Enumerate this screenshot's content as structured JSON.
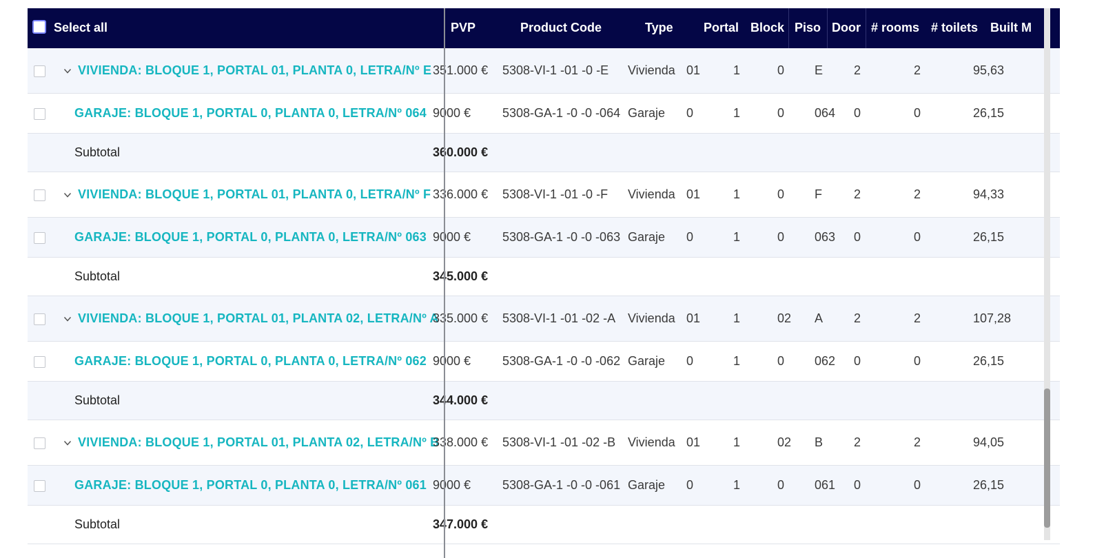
{
  "header": {
    "select_all": "Select all",
    "columns": [
      "PVP",
      "Product Code",
      "Type",
      "Portal",
      "Block",
      "Piso",
      "Door",
      "# rooms",
      "# toilets",
      "Built M"
    ]
  },
  "groups": [
    {
      "parent": {
        "name": "VIVIENDA: BLOQUE 1, PORTAL 01, PLANTA 0, LETRA/Nº E",
        "pvp": "351.000 €",
        "code": "5308-VI-1 -01 -0 -E",
        "type": "Vivienda",
        "portal": "01",
        "block": "1",
        "piso": "0",
        "door": "E",
        "rooms": "2",
        "toilets": "2",
        "built": "95,63"
      },
      "child": {
        "name": "GARAJE: BLOQUE 1, PORTAL 0, PLANTA 0, LETRA/Nº 064",
        "pvp": "9000 €",
        "code": "5308-GA-1 -0 -0 -064",
        "type": "Garaje",
        "portal": "0",
        "block": "1",
        "piso": "0",
        "door": "064",
        "rooms": "0",
        "toilets": "0",
        "built": "26,15"
      },
      "subtotal": {
        "label": "Subtotal",
        "value": "360.000 €"
      }
    },
    {
      "parent": {
        "name": "VIVIENDA: BLOQUE 1, PORTAL 01, PLANTA 0, LETRA/Nº F",
        "pvp": "336.000 €",
        "code": "5308-VI-1 -01 -0 -F",
        "type": "Vivienda",
        "portal": "01",
        "block": "1",
        "piso": "0",
        "door": "F",
        "rooms": "2",
        "toilets": "2",
        "built": "94,33"
      },
      "child": {
        "name": "GARAJE: BLOQUE 1, PORTAL 0, PLANTA 0, LETRA/Nº 063",
        "pvp": "9000 €",
        "code": "5308-GA-1 -0 -0 -063",
        "type": "Garaje",
        "portal": "0",
        "block": "1",
        "piso": "0",
        "door": "063",
        "rooms": "0",
        "toilets": "0",
        "built": "26,15"
      },
      "subtotal": {
        "label": "Subtotal",
        "value": "345.000 €"
      }
    },
    {
      "parent": {
        "name": "VIVIENDA: BLOQUE 1, PORTAL 01, PLANTA 02, LETRA/Nº A",
        "pvp": "335.000 €",
        "code": "5308-VI-1 -01 -02 -A",
        "type": "Vivienda",
        "portal": "01",
        "block": "1",
        "piso": "02",
        "door": "A",
        "rooms": "2",
        "toilets": "2",
        "built": "107,28"
      },
      "child": {
        "name": "GARAJE: BLOQUE 1, PORTAL 0, PLANTA 0, LETRA/Nº 062",
        "pvp": "9000 €",
        "code": "5308-GA-1 -0 -0 -062",
        "type": "Garaje",
        "portal": "0",
        "block": "1",
        "piso": "0",
        "door": "062",
        "rooms": "0",
        "toilets": "0",
        "built": "26,15"
      },
      "subtotal": {
        "label": "Subtotal",
        "value": "344.000 €"
      }
    },
    {
      "parent": {
        "name": "VIVIENDA: BLOQUE 1, PORTAL 01, PLANTA 02, LETRA/Nº B",
        "pvp": "338.000 €",
        "code": "5308-VI-1 -01 -02 -B",
        "type": "Vivienda",
        "portal": "01",
        "block": "1",
        "piso": "02",
        "door": "B",
        "rooms": "2",
        "toilets": "2",
        "built": "94,05"
      },
      "child": {
        "name": "GARAJE: BLOQUE 1, PORTAL 0, PLANTA 0, LETRA/Nº 061",
        "pvp": "9000 €",
        "code": "5308-GA-1 -0 -0 -061",
        "type": "Garaje",
        "portal": "0",
        "block": "1",
        "piso": "0",
        "door": "061",
        "rooms": "0",
        "toilets": "0",
        "built": "26,15"
      },
      "subtotal": {
        "label": "Subtotal",
        "value": "347.000 €"
      }
    }
  ],
  "colors": {
    "header_bg": "#040646",
    "accent": "#16b6c0",
    "alt_row": "#f3f6fc"
  }
}
